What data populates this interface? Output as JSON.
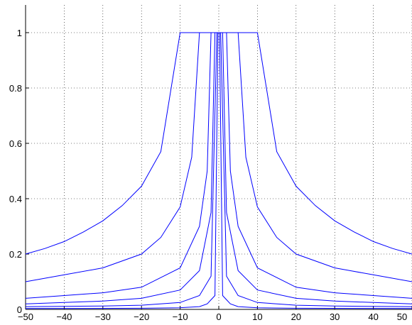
{
  "chart_data": {
    "type": "line",
    "title": "",
    "xlabel": "",
    "ylabel": "",
    "xlim": [
      -50,
      50
    ],
    "ylim": [
      0,
      1.1
    ],
    "grid": true,
    "grid_style": "dotted",
    "line_color": "#0000ff",
    "x_ticks": [
      -50,
      -40,
      -30,
      -20,
      -10,
      0,
      10,
      20,
      30,
      40,
      50
    ],
    "x_tick_labels": [
      "−50",
      "−40",
      "−30",
      "−20",
      "−10",
      "0",
      "10",
      "20",
      "30",
      "40",
      "50"
    ],
    "y_ticks": [
      0,
      0.2,
      0.4,
      0.6,
      0.8,
      1
    ],
    "y_tick_labels": [
      "0",
      "0.2",
      "0.4",
      "0.6",
      "0.8",
      "1"
    ],
    "series": [
      {
        "x": [
          -50,
          -45,
          -40,
          -35,
          -30,
          -25,
          -20,
          -15,
          -10,
          10,
          15,
          20,
          25,
          30,
          35,
          40,
          45,
          50
        ],
        "y": [
          0.2,
          0.22,
          0.245,
          0.28,
          0.32,
          0.375,
          0.445,
          0.57,
          1.0,
          1.0,
          0.57,
          0.445,
          0.375,
          0.32,
          0.28,
          0.245,
          0.22,
          0.2
        ]
      },
      {
        "x": [
          -50,
          -40,
          -30,
          -20,
          -15,
          -10,
          -7,
          -5,
          5,
          7,
          10,
          15,
          20,
          30,
          40,
          50
        ],
        "y": [
          0.1,
          0.125,
          0.15,
          0.2,
          0.26,
          0.37,
          0.55,
          1.0,
          1.0,
          0.55,
          0.37,
          0.26,
          0.2,
          0.15,
          0.125,
          0.1
        ]
      },
      {
        "x": [
          -50,
          -40,
          -30,
          -20,
          -10,
          -5,
          -3,
          -2,
          2,
          3,
          5,
          10,
          20,
          30,
          40,
          50
        ],
        "y": [
          0.04,
          0.05,
          0.06,
          0.08,
          0.15,
          0.3,
          0.5,
          1.0,
          1.0,
          0.5,
          0.3,
          0.15,
          0.08,
          0.06,
          0.05,
          0.04
        ]
      },
      {
        "x": [
          -50,
          -40,
          -30,
          -20,
          -10,
          -5,
          -2,
          -1,
          1,
          2,
          5,
          10,
          20,
          30,
          40,
          50
        ],
        "y": [
          0.02,
          0.025,
          0.03,
          0.04,
          0.07,
          0.14,
          0.35,
          1.0,
          1.0,
          0.35,
          0.14,
          0.07,
          0.04,
          0.03,
          0.025,
          0.02
        ]
      },
      {
        "x": [
          -50,
          -30,
          -20,
          -10,
          -5,
          -2,
          -0.5,
          0.5,
          2,
          5,
          10,
          20,
          30,
          50
        ],
        "y": [
          0.01,
          0.012,
          0.015,
          0.025,
          0.05,
          0.12,
          1.0,
          1.0,
          0.12,
          0.05,
          0.025,
          0.015,
          0.012,
          0.01
        ]
      },
      {
        "x": [
          -50,
          -20,
          -10,
          -5,
          -3,
          -1,
          -0.2,
          0.2,
          1,
          3,
          5,
          10,
          20,
          50
        ],
        "y": [
          0.003,
          0.004,
          0.006,
          0.01,
          0.02,
          0.05,
          1.0,
          1.0,
          0.05,
          0.02,
          0.01,
          0.006,
          0.004,
          0.003
        ]
      }
    ]
  }
}
